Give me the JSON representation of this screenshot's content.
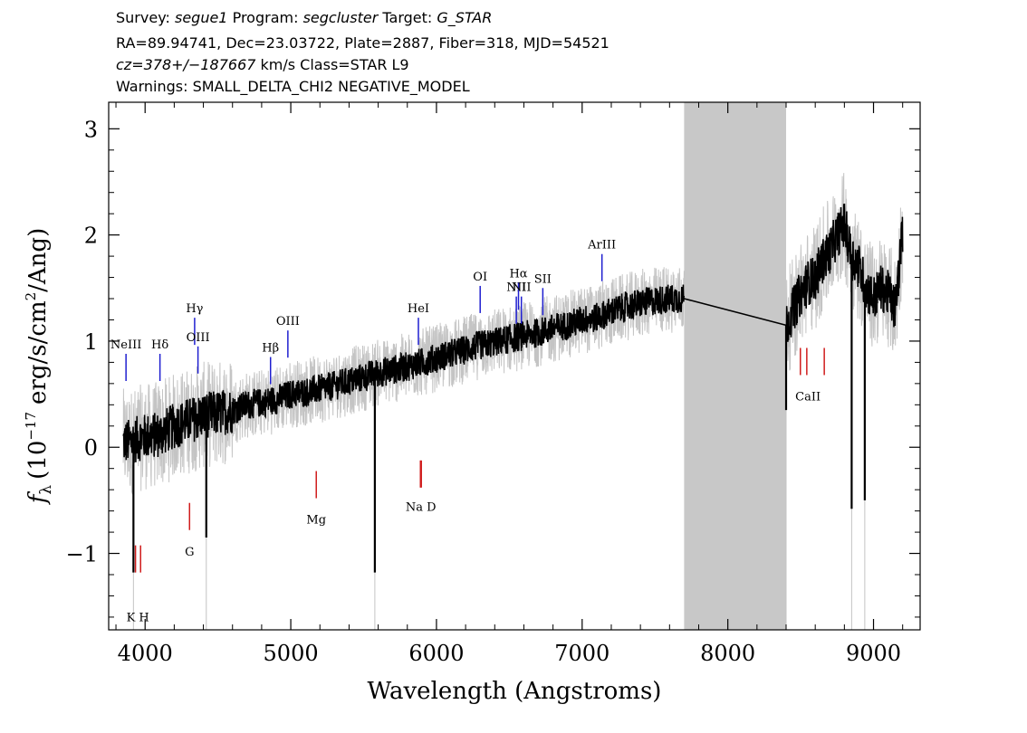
{
  "header": {
    "line1": {
      "survey_label": "Survey:",
      "survey": "segue1",
      "program_label": "Program:",
      "program": "segcluster",
      "target_label": "Target:",
      "target": "G_STAR"
    },
    "line2": "RA=89.94741, Dec=23.03722, Plate=2887, Fiber=318, MJD=54521",
    "line3": {
      "cz": "cz=378+/−187667",
      "rest": "km/s Class=STAR L9"
    },
    "line4": "Warnings: SMALL_DELTA_CHI2 NEGATIVE_MODEL"
  },
  "chart_data": {
    "type": "line",
    "title": "",
    "xlabel": "Wavelength (Angstroms)",
    "ylabel_parts": {
      "f": "f",
      "sub": "λ",
      "open": "(10",
      "exp": "−17",
      "unit": "erg/s/cm",
      "exp2": "2",
      "end": "/Ang)"
    },
    "xlim": [
      3750,
      9320
    ],
    "ylim": [
      -1.72,
      3.25
    ],
    "x_ticks": [
      4000,
      5000,
      6000,
      7000,
      8000,
      9000
    ],
    "y_ticks": [
      -1,
      0,
      1,
      2,
      3
    ],
    "masked_region": [
      7700,
      8400
    ],
    "colors": {
      "spectrum": "#000000",
      "error": "#c4c4c4",
      "emission": "#1f1fd0",
      "absorption": "#d01c1c",
      "mask": "#c8c8c8"
    },
    "spectrum": {
      "x": [
        3850,
        3900,
        3950,
        4000,
        4100,
        4200,
        4300,
        4400,
        4500,
        4600,
        4700,
        4800,
        4900,
        5000,
        5100,
        5200,
        5300,
        5400,
        5500,
        5600,
        5700,
        5800,
        5900,
        6000,
        6100,
        6200,
        6300,
        6400,
        6500,
        6600,
        6700,
        6800,
        6900,
        7000,
        7100,
        7200,
        7300,
        7400,
        7500,
        7600,
        7700,
        8400,
        8450,
        8500,
        8550,
        8600,
        8650,
        8700,
        8750,
        8800,
        8850,
        8900,
        8950,
        9000,
        9050,
        9100,
        9150,
        9200
      ],
      "y": [
        0.05,
        0.05,
        0.08,
        0.1,
        0.12,
        0.2,
        0.25,
        0.3,
        0.32,
        0.35,
        0.4,
        0.42,
        0.45,
        0.5,
        0.52,
        0.55,
        0.58,
        0.62,
        0.66,
        0.7,
        0.73,
        0.76,
        0.8,
        0.84,
        0.88,
        0.92,
        0.96,
        0.99,
        1.02,
        1.05,
        1.08,
        1.12,
        1.15,
        1.2,
        1.22,
        1.28,
        1.32,
        1.36,
        1.38,
        1.4,
        1.4,
        1.15,
        1.3,
        1.45,
        1.55,
        1.6,
        1.75,
        1.85,
        2.0,
        2.1,
        1.8,
        1.7,
        1.5,
        1.4,
        1.5,
        1.45,
        1.3,
        2.05
      ]
    },
    "spikes": [
      {
        "x": 3920,
        "y": -1.18
      },
      {
        "x": 4420,
        "y": -0.85
      },
      {
        "x": 5577,
        "y": -1.18
      },
      {
        "x": 8400,
        "y": 0.35
      },
      {
        "x": 8850,
        "y": -0.58
      },
      {
        "x": 8940,
        "y": -0.5
      }
    ],
    "emission_lines": [
      {
        "label": "NeIII",
        "x": 3869,
        "y": 0.88
      },
      {
        "label": "Hδ",
        "x": 4102,
        "y": 0.88
      },
      {
        "label": "Hγ",
        "x": 4340,
        "y": 1.22
      },
      {
        "label": "OIII",
        "x": 4363,
        "y": 0.95
      },
      {
        "label": "Hβ",
        "x": 4861,
        "y": 0.85
      },
      {
        "label": "OIII",
        "x": 4980,
        "y": 1.1
      },
      {
        "label": "HeI",
        "x": 5876,
        "y": 1.22
      },
      {
        "label": "OI",
        "x": 6300,
        "y": 1.52
      },
      {
        "label": "NII",
        "x": 6548,
        "y": 1.42
      },
      {
        "label": "Hα",
        "x": 6563,
        "y": 1.55
      },
      {
        "label": "NII",
        "x": 6583,
        "y": 1.42
      },
      {
        "label": "SII",
        "x": 6730,
        "y": 1.5
      },
      {
        "label": "ArIII",
        "x": 7136,
        "y": 1.82
      }
    ],
    "absorption_lines": [
      {
        "label": "K",
        "x": 3934,
        "y": -1.18
      },
      {
        "label": "H",
        "x": 3969,
        "y": -1.18
      },
      {
        "label": "G",
        "x": 4305,
        "y": -0.78
      },
      {
        "label": "Mg",
        "x": 5175,
        "y": -0.48
      },
      {
        "label": "Na",
        "x": 5890,
        "y": -0.38
      },
      {
        "label": "D",
        "x": 5896,
        "y": -0.38
      },
      {
        "label": "CaII",
        "x": 8498,
        "y": 0.68
      },
      {
        "label": "CaII",
        "x": 8542,
        "y": 0.68
      },
      {
        "label": "CaII",
        "x": 8662,
        "y": 0.68
      }
    ],
    "absorption_group_labels": [
      {
        "label": "K H",
        "x": 3950,
        "y": -1.52
      },
      {
        "label": "G",
        "x": 4305,
        "y": -0.9
      },
      {
        "label": "Mg",
        "x": 5175,
        "y": -0.6
      },
      {
        "label": "Na  D",
        "x": 5893,
        "y": -0.48
      },
      {
        "label": "CaII",
        "x": 8550,
        "y": 0.56
      }
    ]
  }
}
